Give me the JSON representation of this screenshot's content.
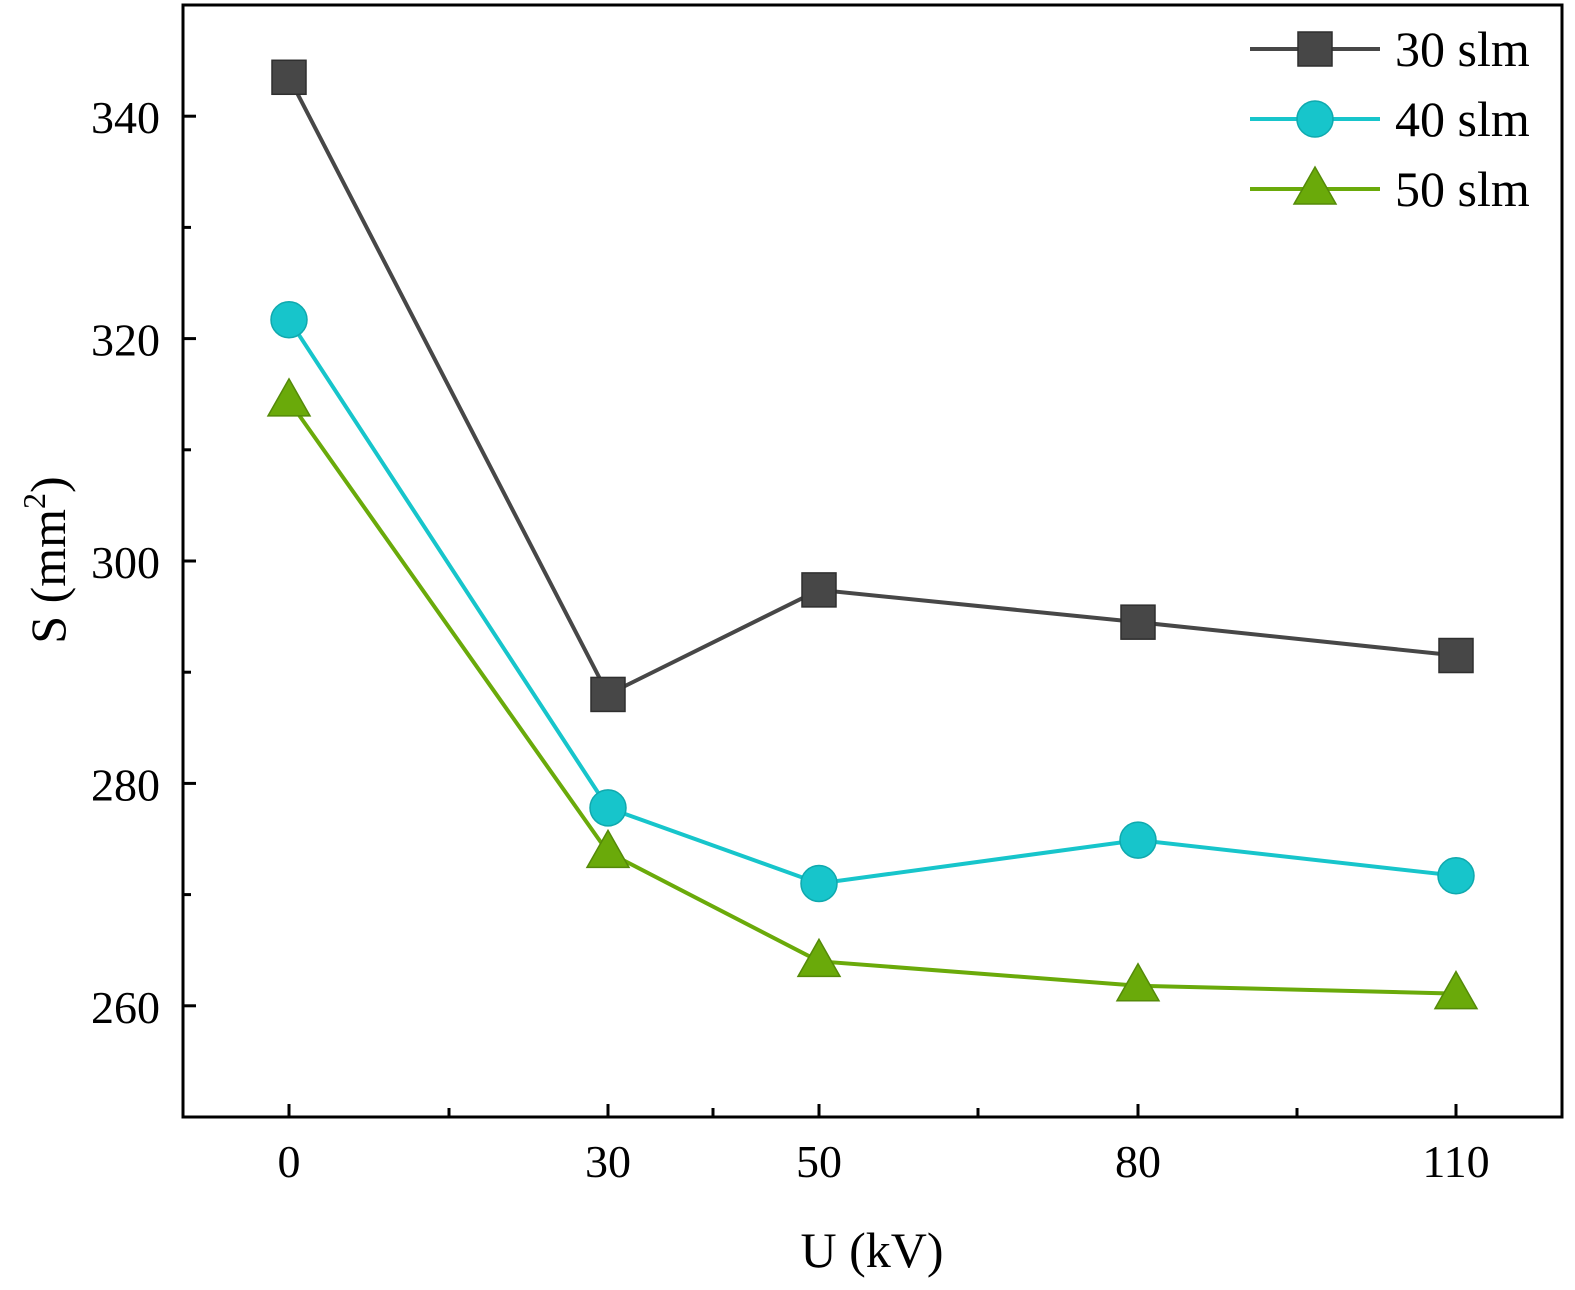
{
  "chart_data": {
    "type": "line",
    "title": "",
    "xlabel": "U (kV)",
    "ylabel_main": "S (mm",
    "ylabel_sup": "2",
    "ylabel_close": ")",
    "x": [
      0,
      30,
      50,
      80,
      110
    ],
    "x_tick_labels": [
      "0",
      "30",
      "50",
      "80",
      "110"
    ],
    "y_ticks": [
      260,
      280,
      300,
      320,
      340
    ],
    "y_tick_labels": [
      "260",
      "280",
      "300",
      "320",
      "340"
    ],
    "ylim": [
      250,
      350
    ],
    "legend_position": "top-right",
    "series": [
      {
        "name": "30 slm",
        "marker": "square",
        "color": "#474747",
        "values": [
          343.5,
          288.0,
          297.4,
          294.5,
          291.5
        ]
      },
      {
        "name": "40 slm",
        "marker": "circle",
        "color": "#17c5cb",
        "values": [
          321.7,
          277.8,
          271.0,
          274.9,
          271.7
        ]
      },
      {
        "name": "50 slm",
        "marker": "triangle",
        "color": "#6aaa0a",
        "values": [
          314.4,
          273.8,
          264.0,
          261.8,
          261.1
        ]
      }
    ]
  }
}
